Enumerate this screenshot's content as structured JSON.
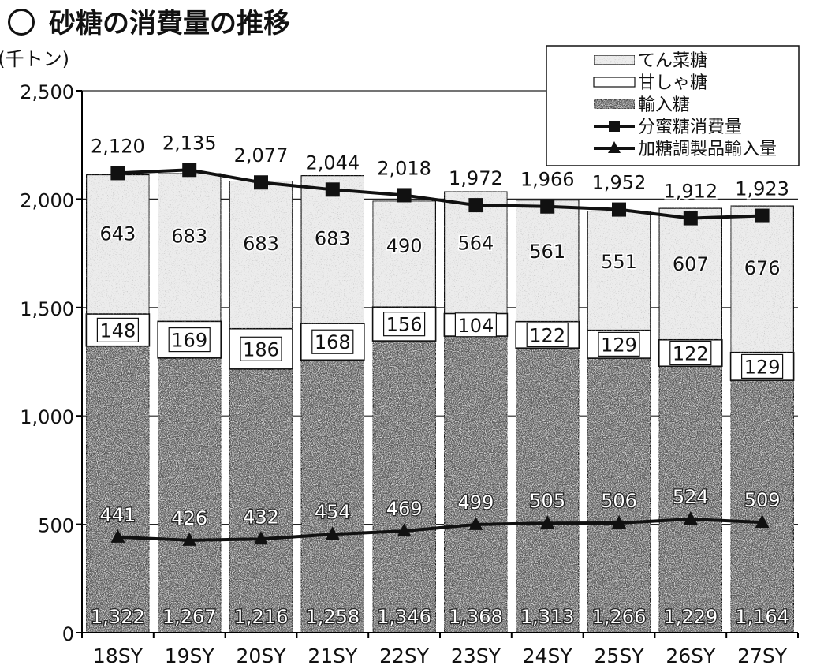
{
  "title": "砂糖の消費量の推移",
  "colors": {
    "import": "#5a5a5a",
    "cane": "#ffffff",
    "beet": "#ececec",
    "line": "#111111",
    "axis": "#000000"
  },
  "chart_data": {
    "type": "bar",
    "title": "砂糖の消費量の推移",
    "yunit": "(千トン)",
    "ylim": [
      0,
      2500
    ],
    "yticks": [
      0,
      500,
      1000,
      1500,
      2000,
      2500
    ],
    "ytick_labels": [
      "0",
      "500",
      "1,000",
      "1,500",
      "2,000",
      "2,500"
    ],
    "grid": true,
    "legend_position": "top-right",
    "stacked": true,
    "categories": [
      "18SY",
      "19SY",
      "20SY",
      "21SY",
      "22SY",
      "23SY",
      "24SY",
      "25SY",
      "26SY",
      "27SY"
    ],
    "series": [
      {
        "name": "輸入糖",
        "kind": "bar",
        "values": [
          1322,
          1267,
          1216,
          1258,
          1346,
          1368,
          1313,
          1266,
          1229,
          1164
        ],
        "labels": [
          "1,322",
          "1,267",
          "1,216",
          "1,258",
          "1,346",
          "1,368",
          "1,313",
          "1,266",
          "1,229",
          "1,164"
        ]
      },
      {
        "name": "甘しゃ糖",
        "kind": "bar",
        "values": [
          148,
          169,
          186,
          168,
          156,
          104,
          122,
          129,
          122,
          129
        ],
        "labels": [
          "148",
          "169",
          "186",
          "168",
          "156",
          "104",
          "122",
          "129",
          "122",
          "129"
        ]
      },
      {
        "name": "てん菜糖",
        "kind": "bar",
        "values": [
          643,
          683,
          683,
          683,
          490,
          564,
          561,
          551,
          607,
          676
        ],
        "labels": [
          "643",
          "683",
          "683",
          "683",
          "490",
          "564",
          "561",
          "551",
          "607",
          "676"
        ]
      },
      {
        "name": "分蜜糖消費量",
        "kind": "line",
        "marker": "square",
        "values": [
          2120,
          2135,
          2077,
          2044,
          2018,
          1972,
          1966,
          1952,
          1912,
          1923
        ],
        "labels": [
          "2,120",
          "2,135",
          "2,077",
          "2,044",
          "2,018",
          "1,972",
          "1,966",
          "1,952",
          "1,912",
          "1,923"
        ]
      },
      {
        "name": "加糖調製品輸入量",
        "kind": "line",
        "marker": "triangle",
        "values": [
          441,
          426,
          432,
          454,
          469,
          499,
          505,
          506,
          524,
          509
        ],
        "labels": [
          "441",
          "426",
          "432",
          "454",
          "469",
          "499",
          "505",
          "506",
          "524",
          "509"
        ]
      }
    ],
    "legend": [
      "てん菜糖",
      "甘しゃ糖",
      "輸入糖",
      "分蜜糖消費量",
      "加糖調製品輸入量"
    ]
  }
}
